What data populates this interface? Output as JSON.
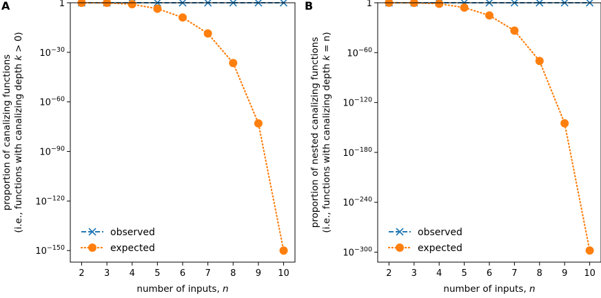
{
  "chart_data": [
    {
      "panel": "A",
      "type": "line",
      "x": [
        2,
        3,
        4,
        5,
        6,
        7,
        8,
        9,
        10
      ],
      "xlabel": {
        "text": "number of inputs, ",
        "var": "n"
      },
      "ylabel_line1": "proportion of canalizing functions",
      "ylabel_line2": {
        "before": "(i.e., functions with canalizing depth ",
        "var": "k",
        "after": " > 0)"
      },
      "yscale": "log",
      "ylim_log10": [
        -157,
        0
      ],
      "yticks": [
        {
          "exp": 0,
          "label": "1"
        },
        {
          "exp": -30,
          "base": "10",
          "sup": "−30"
        },
        {
          "exp": -60,
          "base": "10",
          "sup": "−60"
        },
        {
          "exp": -90,
          "base": "10",
          "sup": "−90"
        },
        {
          "exp": -120,
          "base": "10",
          "sup": "−120"
        },
        {
          "exp": -150,
          "base": "10",
          "sup": "−150"
        }
      ],
      "series": [
        {
          "name": "observed",
          "color": "#1f77b4",
          "marker": "x",
          "linestyle": "dashed",
          "log10_values": [
            0,
            0,
            0,
            0,
            0,
            0,
            0,
            0,
            0
          ]
        },
        {
          "name": "expected",
          "color": "#ff7f0e",
          "marker": "circle",
          "linestyle": "dotted",
          "log10_values": [
            0,
            -0.05,
            -0.9,
            -3.6,
            -8.9,
            -18.6,
            -36.5,
            -73,
            -150
          ]
        }
      ],
      "legend": "lower-left"
    },
    {
      "panel": "B",
      "type": "line",
      "x": [
        2,
        3,
        4,
        5,
        6,
        7,
        8,
        9,
        10
      ],
      "xlabel": {
        "text": "number of inputs, ",
        "var": "n"
      },
      "ylabel_line1": "proportion of nested canalizing functions",
      "ylabel_line2": {
        "before": "(i.e., functions with canalizing depth ",
        "var": "k",
        "after": " = n)"
      },
      "yscale": "log",
      "ylim_log10": [
        -312,
        0
      ],
      "yticks": [
        {
          "exp": 0,
          "label": "1"
        },
        {
          "exp": -60,
          "base": "10",
          "sup": "−60"
        },
        {
          "exp": -120,
          "base": "10",
          "sup": "−120"
        },
        {
          "exp": -180,
          "base": "10",
          "sup": "−180"
        },
        {
          "exp": -240,
          "base": "10",
          "sup": "−240"
        },
        {
          "exp": -300,
          "base": "10",
          "sup": "−300"
        }
      ],
      "series": [
        {
          "name": "observed",
          "color": "#1f77b4",
          "marker": "x",
          "linestyle": "dashed",
          "log10_values": [
            0,
            0,
            0,
            0,
            0,
            0,
            0,
            0,
            0
          ]
        },
        {
          "name": "expected",
          "color": "#ff7f0e",
          "marker": "circle",
          "linestyle": "dotted",
          "log10_values": [
            0,
            -0.1,
            -1.2,
            -5.8,
            -15.2,
            -33.5,
            -70,
            -145,
            -298
          ]
        }
      ],
      "legend": "lower-left"
    }
  ]
}
